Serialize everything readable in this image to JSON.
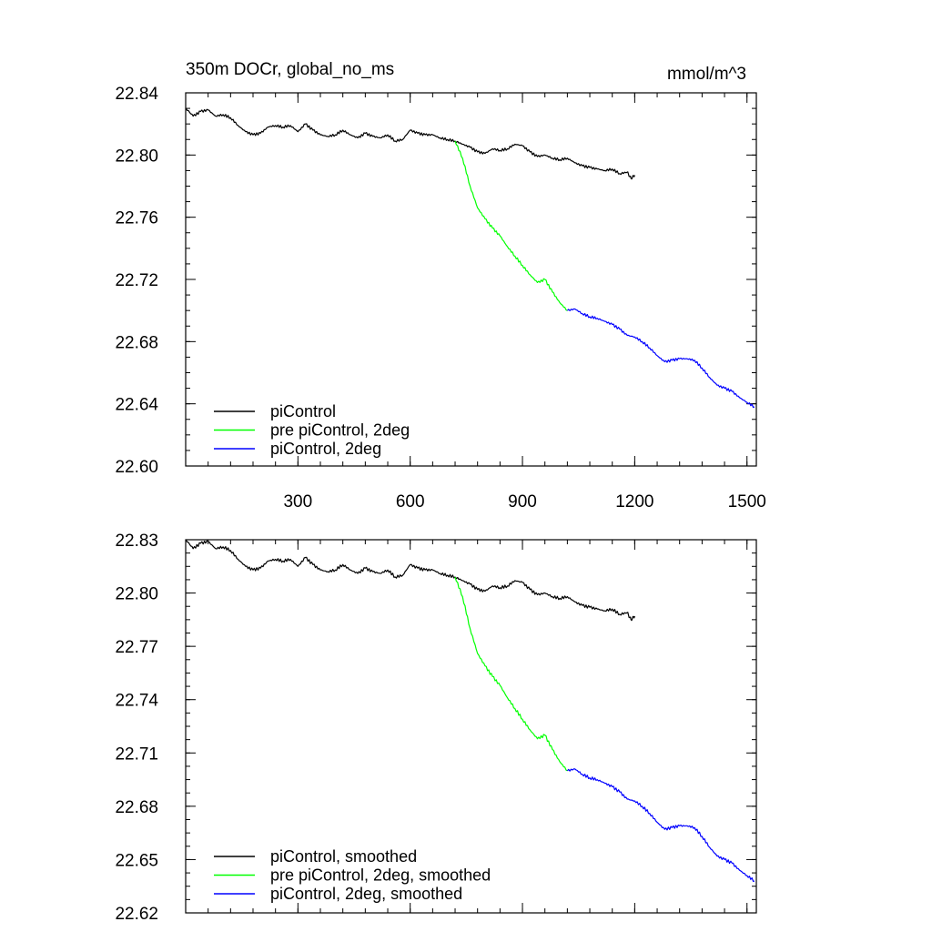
{
  "chart_data": [
    {
      "type": "line",
      "title": "350m DOCr, global_no_ms",
      "units": "mmol/m^3",
      "xlim": [
        0,
        1525
      ],
      "ylim": [
        22.6,
        22.84
      ],
      "x_ticks": [
        300,
        600,
        900,
        1200,
        1500
      ],
      "x_tick_labels": [
        "300",
        "600",
        "900",
        "1200",
        "1500"
      ],
      "y_ticks": [
        22.6,
        22.64,
        22.68,
        22.72,
        22.76,
        22.8,
        22.84
      ],
      "y_tick_labels": [
        "22.60",
        "22.64",
        "22.68",
        "22.72",
        "22.76",
        "22.80",
        "22.84"
      ],
      "legend_position": "bottom-left",
      "series": [
        {
          "name": "piControl",
          "color": "#000000",
          "x": [
            1,
            20,
            40,
            60,
            80,
            100,
            120,
            140,
            160,
            180,
            200,
            220,
            240,
            260,
            280,
            300,
            320,
            340,
            360,
            380,
            400,
            420,
            440,
            460,
            480,
            500,
            520,
            540,
            560,
            580,
            600,
            620,
            640,
            660,
            680,
            700,
            720,
            740,
            760,
            780,
            800,
            820,
            840,
            860,
            880,
            900,
            920,
            940,
            960,
            980,
            1000,
            1020,
            1040,
            1060,
            1080,
            1100,
            1120,
            1140,
            1160,
            1180,
            1190,
            1200
          ],
          "y": [
            22.83,
            22.825,
            22.828,
            22.829,
            22.825,
            22.826,
            22.824,
            22.819,
            22.815,
            22.813,
            22.814,
            22.818,
            22.819,
            22.818,
            22.819,
            22.815,
            22.82,
            22.816,
            22.813,
            22.812,
            22.813,
            22.816,
            22.813,
            22.811,
            22.814,
            22.812,
            22.811,
            22.813,
            22.809,
            22.81,
            22.816,
            22.814,
            22.813,
            22.813,
            22.811,
            22.81,
            22.809,
            22.807,
            22.805,
            22.802,
            22.801,
            22.804,
            22.803,
            22.804,
            22.807,
            22.806,
            22.802,
            22.799,
            22.8,
            22.798,
            22.797,
            22.798,
            22.795,
            22.793,
            22.792,
            22.791,
            22.79,
            22.791,
            22.788,
            22.789,
            22.785,
            22.787
          ]
        },
        {
          "name": "pre piControl, 2deg",
          "color": "#00ff00",
          "x": [
            720,
            740,
            760,
            780,
            800,
            820,
            840,
            860,
            880,
            900,
            920,
            940,
            960,
            980,
            1000,
            1020
          ],
          "y": [
            22.809,
            22.798,
            22.78,
            22.766,
            22.759,
            22.753,
            22.748,
            22.741,
            22.735,
            22.729,
            22.723,
            22.718,
            22.72,
            22.712,
            22.705,
            22.7
          ]
        },
        {
          "name": "piControl, 2deg",
          "color": "#0000ff",
          "x": [
            1020,
            1040,
            1060,
            1080,
            1100,
            1120,
            1140,
            1160,
            1180,
            1200,
            1220,
            1240,
            1260,
            1280,
            1300,
            1320,
            1340,
            1360,
            1380,
            1400,
            1420,
            1440,
            1460,
            1480,
            1500,
            1520
          ],
          "y": [
            22.7,
            22.701,
            22.698,
            22.696,
            22.695,
            22.693,
            22.691,
            22.688,
            22.684,
            22.683,
            22.68,
            22.676,
            22.671,
            22.667,
            22.668,
            22.669,
            22.669,
            22.668,
            22.663,
            22.657,
            22.652,
            22.65,
            22.648,
            22.644,
            22.641,
            22.638
          ]
        }
      ]
    },
    {
      "type": "line",
      "xlim": [
        0,
        1525
      ],
      "ylim": [
        22.62,
        22.83
      ],
      "x_ticks": [
        300,
        600,
        900,
        1200,
        1500
      ],
      "y_ticks": [
        22.62,
        22.65,
        22.68,
        22.71,
        22.74,
        22.77,
        22.8,
        22.83
      ],
      "y_tick_labels": [
        "22.62",
        "22.65",
        "22.68",
        "22.71",
        "22.74",
        "22.77",
        "22.80",
        "22.83"
      ],
      "legend_position": "bottom-left",
      "series": [
        {
          "name": "piControl, smoothed",
          "color": "#000000",
          "x": [
            1,
            20,
            40,
            60,
            80,
            100,
            120,
            140,
            160,
            180,
            200,
            220,
            240,
            260,
            280,
            300,
            320,
            340,
            360,
            380,
            400,
            420,
            440,
            460,
            480,
            500,
            520,
            540,
            560,
            580,
            600,
            620,
            640,
            660,
            680,
            700,
            720,
            740,
            760,
            780,
            800,
            820,
            840,
            860,
            880,
            900,
            920,
            940,
            960,
            980,
            1000,
            1020,
            1040,
            1060,
            1080,
            1100,
            1120,
            1140,
            1160,
            1180,
            1190,
            1200
          ],
          "y": [
            22.83,
            22.825,
            22.828,
            22.829,
            22.825,
            22.826,
            22.824,
            22.819,
            22.815,
            22.813,
            22.814,
            22.818,
            22.819,
            22.818,
            22.819,
            22.815,
            22.82,
            22.816,
            22.813,
            22.812,
            22.813,
            22.816,
            22.813,
            22.811,
            22.814,
            22.812,
            22.811,
            22.813,
            22.809,
            22.81,
            22.816,
            22.814,
            22.813,
            22.813,
            22.811,
            22.81,
            22.809,
            22.807,
            22.805,
            22.802,
            22.801,
            22.804,
            22.803,
            22.804,
            22.807,
            22.806,
            22.802,
            22.799,
            22.8,
            22.798,
            22.797,
            22.798,
            22.795,
            22.793,
            22.792,
            22.791,
            22.79,
            22.791,
            22.788,
            22.789,
            22.785,
            22.787
          ]
        },
        {
          "name": "pre piControl, 2deg, smoothed",
          "color": "#00ff00",
          "x": [
            720,
            740,
            760,
            780,
            800,
            820,
            840,
            860,
            880,
            900,
            920,
            940,
            960,
            980,
            1000,
            1020
          ],
          "y": [
            22.809,
            22.798,
            22.78,
            22.766,
            22.759,
            22.753,
            22.748,
            22.741,
            22.735,
            22.729,
            22.723,
            22.718,
            22.72,
            22.712,
            22.705,
            22.7
          ]
        },
        {
          "name": "piControl, 2deg, smoothed",
          "color": "#0000ff",
          "x": [
            1020,
            1040,
            1060,
            1080,
            1100,
            1120,
            1140,
            1160,
            1180,
            1200,
            1220,
            1240,
            1260,
            1280,
            1300,
            1320,
            1340,
            1360,
            1380,
            1400,
            1420,
            1440,
            1460,
            1480,
            1500,
            1520
          ],
          "y": [
            22.7,
            22.701,
            22.698,
            22.696,
            22.695,
            22.693,
            22.691,
            22.688,
            22.684,
            22.683,
            22.68,
            22.676,
            22.671,
            22.667,
            22.668,
            22.669,
            22.669,
            22.668,
            22.663,
            22.657,
            22.652,
            22.65,
            22.648,
            22.644,
            22.641,
            22.638
          ]
        }
      ]
    }
  ]
}
